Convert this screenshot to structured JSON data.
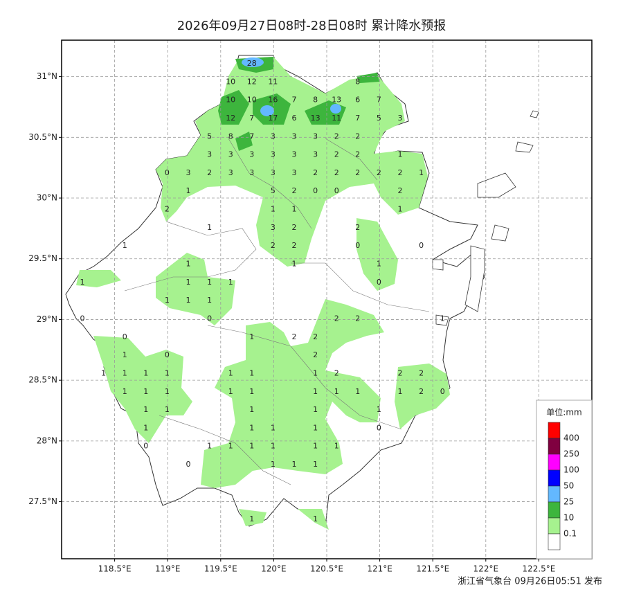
{
  "title": "2026年09月27日08时-28日08时 累计降水预报",
  "footer": "浙江省气象台 09月26日05:51 发布",
  "map": {
    "xlim": [
      118.0,
      123.0
    ],
    "ylim": [
      27.03,
      31.3
    ],
    "xticks": [
      {
        "value": 118.5,
        "label": "118.5°E"
      },
      {
        "value": 119,
        "label": "119°E"
      },
      {
        "value": 119.5,
        "label": "119.5°E"
      },
      {
        "value": 120,
        "label": "120°E"
      },
      {
        "value": 120.5,
        "label": "120.5°E"
      },
      {
        "value": 121,
        "label": "121°E"
      },
      {
        "value": 121.5,
        "label": "121.5°E"
      },
      {
        "value": 122,
        "label": "122°E"
      },
      {
        "value": 122.5,
        "label": "122.5°E"
      }
    ],
    "yticks": [
      {
        "value": 31,
        "label": "31°N"
      },
      {
        "value": 30.5,
        "label": "30.5°N"
      },
      {
        "value": 30,
        "label": "30°N"
      },
      {
        "value": 29.5,
        "label": "29.5°N"
      },
      {
        "value": 29,
        "label": "29°N"
      },
      {
        "value": 28.5,
        "label": "28.5°N"
      },
      {
        "value": 28,
        "label": "28°N"
      },
      {
        "value": 27.5,
        "label": "27.5°N"
      }
    ],
    "grid": true,
    "stations": [
      [
        null,
        null,
        null,
        null,
        null,
        null,
        null,
        null,
        28,
        null,
        null,
        null,
        null,
        null,
        null,
        null,
        null,
        null
      ],
      [
        null,
        null,
        null,
        null,
        null,
        null,
        null,
        10,
        12,
        11,
        null,
        null,
        null,
        8,
        null,
        null,
        null,
        null
      ],
      [
        null,
        null,
        null,
        null,
        null,
        null,
        null,
        10,
        10,
        16,
        7,
        8,
        13,
        6,
        7,
        null,
        null,
        null
      ],
      [
        null,
        null,
        null,
        null,
        null,
        null,
        null,
        12,
        7,
        17,
        6,
        13,
        11,
        7,
        5,
        3,
        null,
        null
      ],
      [
        null,
        null,
        null,
        null,
        null,
        null,
        5,
        8,
        7,
        3,
        3,
        3,
        2,
        2,
        null,
        null,
        null,
        null
      ],
      [
        null,
        null,
        null,
        null,
        null,
        null,
        3,
        3,
        3,
        3,
        3,
        3,
        2,
        2,
        null,
        1,
        null,
        null
      ],
      [
        null,
        null,
        null,
        null,
        0,
        3,
        2,
        3,
        3,
        3,
        3,
        2,
        2,
        2,
        2,
        2,
        1,
        null
      ],
      [
        null,
        null,
        null,
        null,
        null,
        1,
        null,
        null,
        null,
        5,
        2,
        0,
        0,
        null,
        null,
        2,
        null,
        null
      ],
      [
        null,
        null,
        null,
        null,
        2,
        null,
        null,
        null,
        null,
        1,
        1,
        null,
        null,
        null,
        null,
        1,
        null,
        null
      ],
      [
        null,
        null,
        null,
        null,
        null,
        null,
        1,
        null,
        null,
        3,
        2,
        null,
        null,
        2,
        null,
        null,
        null,
        null
      ],
      [
        null,
        null,
        1,
        null,
        null,
        null,
        null,
        null,
        null,
        2,
        2,
        null,
        null,
        0,
        null,
        null,
        0,
        null
      ],
      [
        null,
        null,
        null,
        null,
        null,
        1,
        null,
        null,
        null,
        null,
        1,
        null,
        null,
        null,
        1,
        null,
        null,
        null
      ],
      [
        1,
        null,
        null,
        null,
        null,
        1,
        1,
        1,
        null,
        null,
        null,
        null,
        null,
        null,
        0,
        null,
        null,
        null
      ],
      [
        null,
        null,
        null,
        null,
        1,
        1,
        1,
        null,
        null,
        null,
        null,
        null,
        null,
        null,
        null,
        null,
        null,
        null
      ],
      [
        0,
        null,
        null,
        null,
        null,
        null,
        0,
        null,
        null,
        null,
        null,
        null,
        2,
        2,
        null,
        null,
        null,
        1
      ],
      [
        null,
        null,
        0,
        null,
        null,
        null,
        null,
        null,
        1,
        null,
        2,
        2,
        null,
        null,
        null,
        null,
        null,
        null
      ],
      [
        null,
        null,
        1,
        null,
        0,
        null,
        null,
        null,
        null,
        null,
        null,
        2,
        null,
        null,
        null,
        null,
        null,
        null
      ],
      [
        null,
        1,
        1,
        1,
        1,
        null,
        null,
        1,
        1,
        null,
        null,
        1,
        2,
        null,
        null,
        2,
        2,
        null
      ],
      [
        null,
        null,
        1,
        1,
        1,
        null,
        null,
        1,
        1,
        null,
        null,
        1,
        1,
        1,
        null,
        1,
        2,
        0
      ],
      [
        null,
        null,
        null,
        1,
        1,
        null,
        null,
        null,
        1,
        null,
        null,
        1,
        null,
        null,
        1,
        null,
        null,
        null
      ],
      [
        null,
        null,
        null,
        1,
        null,
        null,
        null,
        null,
        1,
        1,
        null,
        1,
        null,
        null,
        0,
        null,
        null,
        null
      ],
      [
        null,
        null,
        null,
        0,
        null,
        null,
        1,
        1,
        1,
        1,
        null,
        1,
        1,
        null,
        null,
        null,
        null,
        null
      ],
      [
        null,
        null,
        null,
        null,
        null,
        0,
        null,
        null,
        null,
        1,
        1,
        1,
        null,
        null,
        null,
        null,
        null,
        null
      ],
      [
        null,
        null,
        null,
        null,
        null,
        null,
        null,
        null,
        null,
        null,
        null,
        null,
        null,
        null,
        null,
        null,
        null,
        null
      ],
      [
        null,
        null,
        null,
        null,
        null,
        null,
        null,
        null,
        null,
        null,
        null,
        null,
        null,
        null,
        null,
        null,
        null,
        null
      ],
      [
        null,
        null,
        null,
        null,
        null,
        null,
        null,
        null,
        1,
        null,
        null,
        1,
        null,
        null,
        null,
        null,
        null,
        null
      ]
    ]
  },
  "legend": {
    "title": "单位:mm",
    "colors": [
      "#ff0000",
      "#800040",
      "#ff00ff",
      "#0000ff",
      "#63b8ff",
      "#3db53d",
      "#a6f28f",
      "#ffffff"
    ],
    "levels": [
      400,
      250,
      100,
      50,
      25,
      10,
      0.1
    ]
  }
}
